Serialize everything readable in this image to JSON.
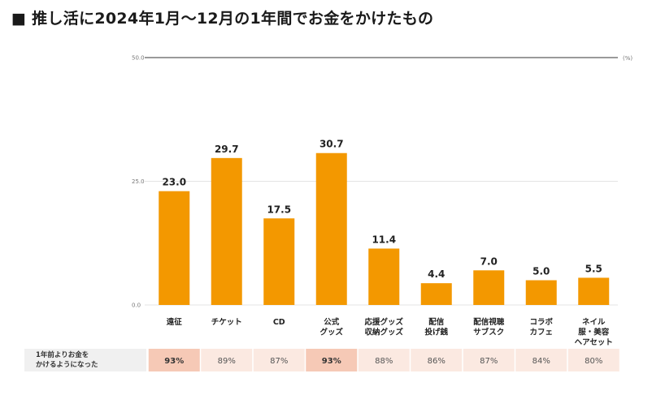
{
  "title": "■ 推し活に2024年1月〜12月の1年間でお金をかけたもの",
  "row": {
    "label_line1": "1年前よりお金を",
    "label_line2": "かけるようになった",
    "values": [
      "93%",
      "89%",
      "87%",
      "93%",
      "88%",
      "86%",
      "87%",
      "84%",
      "80%"
    ],
    "highlight": [
      true,
      false,
      false,
      true,
      false,
      false,
      false,
      false,
      false
    ]
  },
  "colors": {
    "bar": "#f39800",
    "gridline": "#e3e3e3",
    "top_line": "#9a9a9a",
    "row_light": "#fbe9e1",
    "row_highlight": "#f6c9b6"
  },
  "chart_data": {
    "type": "bar",
    "unit_label": "(%)",
    "ylim": [
      0,
      50
    ],
    "yticks": [
      0,
      25,
      50
    ],
    "ytick_labels": [
      "0.0",
      "25.0",
      "50.0"
    ],
    "categories": [
      [
        "遠征"
      ],
      [
        "チケット"
      ],
      [
        "CD"
      ],
      [
        "公式",
        "グッズ"
      ],
      [
        "応援グッズ",
        "収納グッズ"
      ],
      [
        "配信",
        "投げ銭"
      ],
      [
        "配信視聴",
        "サブスク"
      ],
      [
        "コラボ",
        "カフェ"
      ],
      [
        "ネイル",
        "服・美容",
        "ヘアセット"
      ]
    ],
    "values": [
      23.0,
      29.7,
      17.5,
      30.7,
      11.4,
      4.4,
      7.0,
      5.0,
      5.5
    ],
    "value_labels": [
      "23.0",
      "29.7",
      "17.5",
      "30.7",
      "11.4",
      "4.4",
      "7.0",
      "5.0",
      "5.5"
    ]
  }
}
